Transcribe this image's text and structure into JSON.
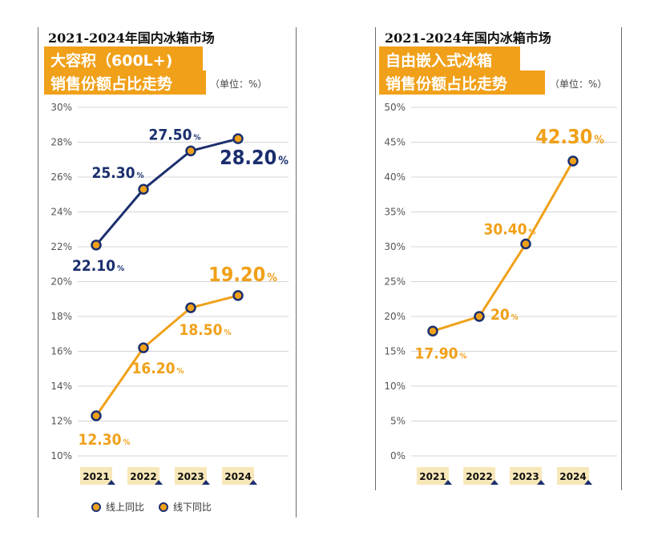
{
  "colors": {
    "orange": "#f0a019",
    "navy": "#1b2f6e",
    "grid": "#d4d4d4",
    "axis_text": "#555555"
  },
  "left": {
    "top_title": "2021-2024年国内冰箱市场",
    "box_line1": "大容积（600L+)",
    "box_line2": "销售份额占比走势",
    "unit": "（单位：%）",
    "legend": [
      {
        "label": "线上同比",
        "color": "#f0a019"
      },
      {
        "label": "线下同比",
        "color": "#1b2f6e"
      }
    ]
  },
  "right": {
    "top_title": "2021-2024年国内冰箱市场",
    "box_line1": "自由嵌入式冰箱",
    "box_line2": "销售份额占比走势",
    "unit": "（单位：%）"
  },
  "chart_data": [
    {
      "type": "line",
      "categories": [
        "2021",
        "2022",
        "2023",
        "2024"
      ],
      "ylim": [
        10,
        30
      ],
      "yticks": [
        "10%",
        "12%",
        "14%",
        "16%",
        "18%",
        "20%",
        "22%",
        "24%",
        "26%",
        "28%",
        "30%"
      ],
      "series": [
        {
          "name": "线下同比",
          "color": "#1b2f6e",
          "values": [
            22.1,
            25.3,
            27.5,
            28.2
          ],
          "labels": [
            "22.10",
            "25.30",
            "27.50",
            "28.20"
          ]
        },
        {
          "name": "线上同比",
          "color": "#f0a019",
          "values": [
            12.3,
            16.2,
            18.5,
            19.2
          ],
          "labels": [
            "12.30",
            "16.20",
            "18.50",
            "19.20"
          ]
        }
      ]
    },
    {
      "type": "line",
      "categories": [
        "2021",
        "2022",
        "2023",
        "2024"
      ],
      "ylim": [
        0,
        50
      ],
      "yticks": [
        "0%",
        "5%",
        "10%",
        "15%",
        "20%",
        "25%",
        "30%",
        "35%",
        "40%",
        "45%",
        "50%"
      ],
      "series": [
        {
          "color": "#f0a019",
          "values": [
            17.9,
            20,
            30.4,
            42.3
          ],
          "labels": [
            "17.90",
            "20",
            "30.40",
            "42.30"
          ]
        }
      ]
    }
  ]
}
